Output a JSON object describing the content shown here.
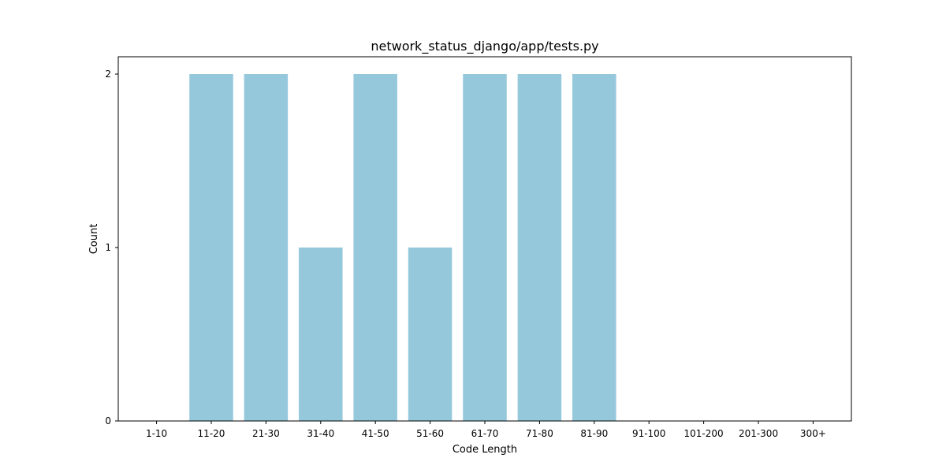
{
  "chart_data": {
    "type": "bar",
    "title": "network_status_django/app/tests.py",
    "xlabel": "Code Length",
    "ylabel": "Count",
    "categories": [
      "1-10",
      "11-20",
      "21-30",
      "31-40",
      "41-50",
      "51-60",
      "61-70",
      "71-80",
      "81-90",
      "91-100",
      "101-200",
      "201-300",
      "300+"
    ],
    "values": [
      0,
      2,
      2,
      1,
      2,
      1,
      2,
      2,
      2,
      0,
      0,
      0,
      0
    ],
    "ylim": [
      0,
      2.1
    ],
    "yticks": [
      0,
      1,
      2
    ],
    "grid": false,
    "legend": "none",
    "bar_color": "#96c8dc"
  }
}
